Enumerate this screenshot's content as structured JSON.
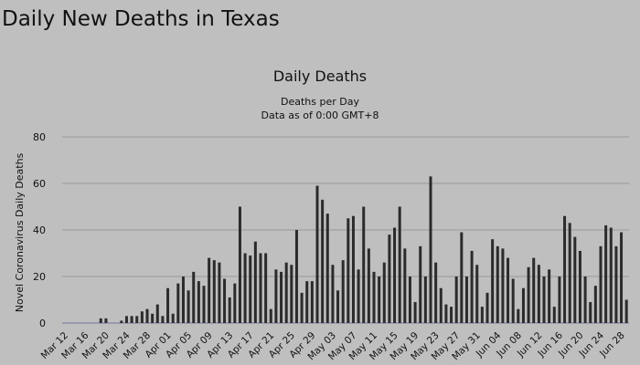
{
  "page_title": "Daily New Deaths in Texas",
  "chart_data": {
    "type": "bar",
    "title": "Daily Deaths",
    "subtitle": "Deaths per Day",
    "subtitle2": "Data as of 0:00 GMT+8",
    "xlabel": "",
    "ylabel": "Novel Coronavirus Daily Deaths",
    "ylim": [
      0,
      80
    ],
    "yticks": [
      0,
      20,
      40,
      60,
      80
    ],
    "grid": true,
    "bar_color": "#2b2b2b",
    "start_date": "Mar 12",
    "xtick_labels": [
      "Mar 12",
      "Mar 16",
      "Mar 20",
      "Mar 24",
      "Mar 28",
      "Apr 01",
      "Apr 05",
      "Apr 09",
      "Apr 13",
      "Apr 17",
      "Apr 21",
      "Apr 25",
      "Apr 29",
      "May 03",
      "May 07",
      "May 11",
      "May 15",
      "May 19",
      "May 23",
      "May 27",
      "May 31",
      "Jun 04",
      "Jun 08",
      "Jun 12",
      "Jun 16",
      "Jun 20",
      "Jun 24",
      "Jun 28"
    ],
    "values": [
      0,
      0,
      0,
      0,
      0,
      0,
      0,
      2,
      2,
      0,
      0,
      1,
      3,
      3,
      3,
      5,
      6,
      4,
      8,
      3,
      15,
      4,
      17,
      20,
      14,
      22,
      18,
      16,
      28,
      27,
      26,
      19,
      11,
      17,
      50,
      30,
      29,
      35,
      30,
      30,
      6,
      23,
      22,
      26,
      25,
      40,
      13,
      18,
      18,
      59,
      53,
      47,
      25,
      14,
      27,
      45,
      46,
      23,
      50,
      32,
      22,
      20,
      26,
      38,
      41,
      50,
      32,
      20,
      9,
      33,
      20,
      63,
      26,
      15,
      8,
      7,
      20,
      39,
      20,
      31,
      25,
      7,
      13,
      36,
      33,
      32,
      28,
      19,
      6,
      15,
      24,
      28,
      25,
      20,
      23,
      7,
      20,
      46,
      43,
      37,
      31,
      20,
      9,
      16,
      33,
      42,
      41,
      33,
      39,
      10
    ]
  }
}
